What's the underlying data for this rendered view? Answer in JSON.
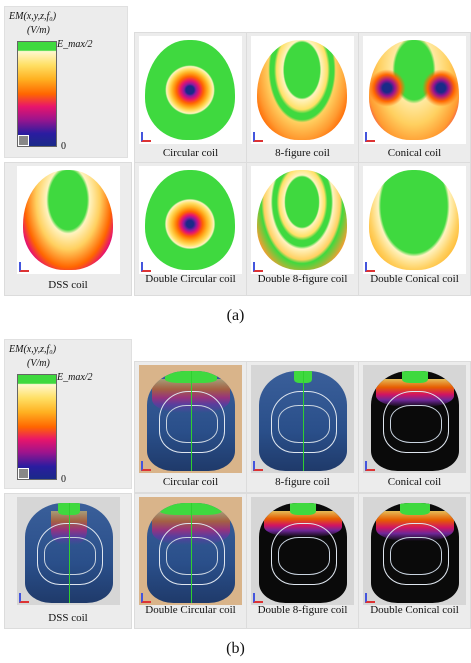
{
  "figure": {
    "colorbar": {
      "title": "EM(x,y,z,f₀)",
      "unit": "(V/m)",
      "max_label": "E_max/2",
      "min_label": "0",
      "colors": [
        "#3fd93f",
        "#ffe066",
        "#ff6600",
        "#e8156b",
        "#a0148c",
        "#1a2a88"
      ]
    },
    "panel_a": {
      "caption": "(a)",
      "items": [
        {
          "label": "Circular coil"
        },
        {
          "label": "8-figure coil"
        },
        {
          "label": "Conical coil"
        },
        {
          "label": "DSS coil"
        },
        {
          "label": "Double Circular coil"
        },
        {
          "label": "Double 8-figure coil"
        },
        {
          "label": "Double Conical coil"
        }
      ]
    },
    "panel_b": {
      "caption": "(b)",
      "items": [
        {
          "label": "Circular coil"
        },
        {
          "label": "8-figure coil"
        },
        {
          "label": "Conical coil"
        },
        {
          "label": "DSS coil"
        },
        {
          "label": "Double Circular coil"
        },
        {
          "label": "Double 8-figure coil"
        },
        {
          "label": "Double Conical coil"
        }
      ]
    }
  }
}
